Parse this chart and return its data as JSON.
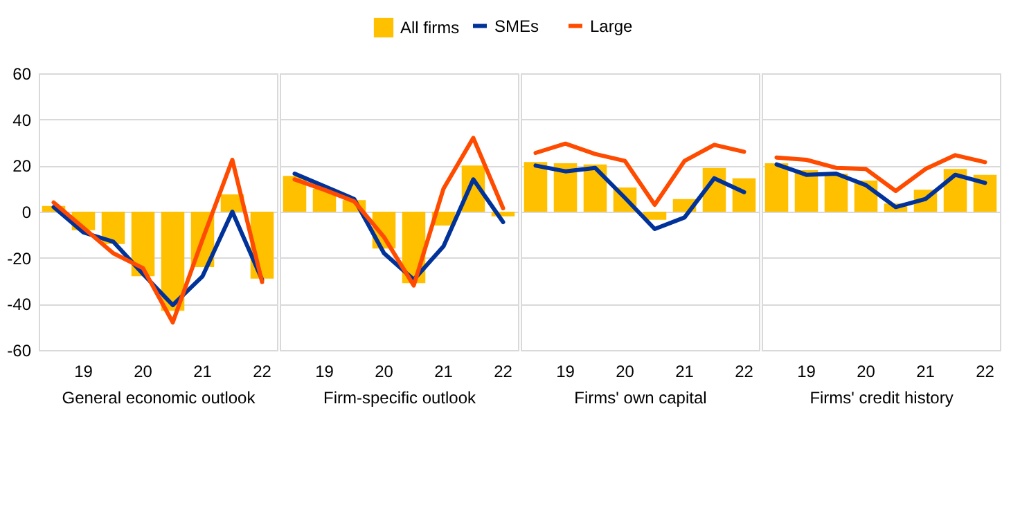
{
  "chart_data": [
    {
      "type": "bar",
      "xlabel": "General economic outlook",
      "categories": [
        null,
        "19",
        null,
        "20",
        null,
        "21",
        null,
        "22"
      ],
      "ylim": [
        -60,
        60
      ],
      "yticks": [
        -60,
        -40,
        -20,
        0,
        20,
        40,
        60
      ],
      "grid": "y",
      "legend": "top",
      "series": [
        {
          "name": "All firms",
          "type": "bar",
          "color": "#ffc000",
          "values": [
            2.5,
            -8,
            -14,
            -28,
            -43,
            -24,
            7.5,
            -29
          ]
        },
        {
          "name": "SMEs",
          "type": "line",
          "color": "#003299",
          "values": [
            2,
            -9,
            -13,
            -27,
            -40.5,
            -28,
            0,
            -29.5
          ]
        },
        {
          "name": "Large",
          "type": "line",
          "color": "#ff4b00",
          "values": [
            4,
            -7,
            -18,
            -24.5,
            -48,
            -12,
            22.5,
            -30.5
          ]
        }
      ]
    },
    {
      "type": "bar",
      "xlabel": "Firm-specific outlook",
      "categories": [
        null,
        "19",
        null,
        "20",
        null,
        "21",
        null,
        "22"
      ],
      "ylim": [
        -60,
        60
      ],
      "yticks": [
        -60,
        -40,
        -20,
        0,
        20,
        40,
        60
      ],
      "grid": "y",
      "tick_labels": "x",
      "series": [
        {
          "name": "All firms",
          "type": "bar",
          "color": "#ffc000",
          "values": [
            15.5,
            10,
            5,
            -16,
            -31,
            -6,
            20,
            -2
          ]
        },
        {
          "name": "SMEs",
          "type": "line",
          "color": "#003299",
          "values": [
            16.5,
            11,
            5.5,
            -18,
            -29.5,
            -15,
            14,
            -4.5
          ]
        },
        {
          "name": "Large",
          "type": "line",
          "color": "#ff4b00",
          "values": [
            14,
            9.5,
            4.5,
            -11,
            -32,
            10,
            32,
            1.5
          ]
        }
      ]
    },
    {
      "type": "bar",
      "xlabel": "Firms' own capital",
      "categories": [
        null,
        "19",
        null,
        "20",
        null,
        "21",
        null,
        "22"
      ],
      "ylim": [
        -60,
        60
      ],
      "yticks": [
        -60,
        -40,
        -20,
        0,
        20,
        40,
        60
      ],
      "grid": "y",
      "tick_labels": "x",
      "series": [
        {
          "name": "All firms",
          "type": "bar",
          "color": "#ffc000",
          "values": [
            21.5,
            21,
            20.5,
            10.5,
            -3.5,
            5.5,
            19,
            14.5
          ]
        },
        {
          "name": "SMEs",
          "type": "line",
          "color": "#003299",
          "values": [
            20,
            17.5,
            19,
            6,
            -7.5,
            -2.5,
            14.5,
            8.5
          ]
        },
        {
          "name": "Large",
          "type": "line",
          "color": "#ff4b00",
          "values": [
            25.5,
            29.5,
            25,
            22,
            3,
            22,
            29,
            26
          ]
        }
      ]
    },
    {
      "type": "bar",
      "xlabel": "Firms' credit history",
      "categories": [
        null,
        "19",
        null,
        "20",
        null,
        "21",
        null,
        "22"
      ],
      "ylim": [
        -60,
        60
      ],
      "yticks": [
        -60,
        -40,
        -20,
        0,
        20,
        40,
        60
      ],
      "grid": "y",
      "tick_labels": "x",
      "series": [
        {
          "name": "All firms",
          "type": "bar",
          "color": "#ffc000",
          "values": [
            21,
            18,
            16.5,
            13.5,
            3.5,
            9.5,
            18.5,
            16
          ]
        },
        {
          "name": "SMEs",
          "type": "line",
          "color": "#003299",
          "values": [
            20.5,
            16,
            16.5,
            11.5,
            2,
            5.5,
            16,
            12.5
          ]
        },
        {
          "name": "Large",
          "type": "line",
          "color": "#ff4b00",
          "values": [
            23.5,
            22.5,
            19,
            18.5,
            9,
            18.5,
            24.5,
            21.5
          ]
        }
      ]
    }
  ]
}
